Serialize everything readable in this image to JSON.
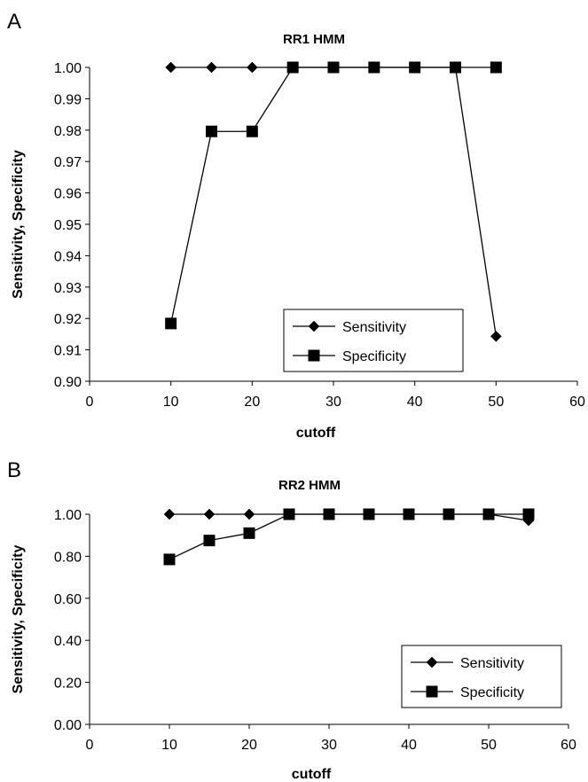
{
  "chart_data": [
    {
      "panel": "A",
      "type": "line",
      "title": "RR1 HMM",
      "xlabel": "cutoff",
      "ylabel": "Sensitivity, Specificity",
      "xlim": [
        0,
        60
      ],
      "ylim": [
        0.9,
        1.0
      ],
      "xticks": [
        "0",
        "10",
        "20",
        "30",
        "40",
        "50",
        "60"
      ],
      "yticks": [
        "0.90",
        "0.91",
        "0.92",
        "0.93",
        "0.94",
        "0.95",
        "0.96",
        "0.97",
        "0.98",
        "0.99",
        "1.00"
      ],
      "grid": false,
      "legend_position": "bottom-right",
      "series": [
        {
          "name": "Sensitivity",
          "marker": "diamond",
          "color": "#000000",
          "x": [
            10,
            15,
            20,
            25,
            30,
            35,
            40,
            45,
            50
          ],
          "y": [
            1.0,
            1.0,
            1.0,
            1.0,
            1.0,
            1.0,
            1.0,
            1.0,
            0.9143
          ]
        },
        {
          "name": "Specificity",
          "marker": "square",
          "color": "#000000",
          "x": [
            10,
            15,
            20,
            25,
            30,
            35,
            40,
            45,
            50
          ],
          "y": [
            0.9184,
            0.9796,
            0.9796,
            1.0,
            1.0,
            1.0,
            1.0,
            1.0,
            1.0
          ]
        }
      ]
    },
    {
      "panel": "B",
      "type": "line",
      "title": "RR2 HMM",
      "xlabel": "cutoff",
      "ylabel": "Sensitivity, Specificity",
      "xlim": [
        0,
        60
      ],
      "ylim": [
        0.0,
        1.0
      ],
      "xticks": [
        "0",
        "10",
        "20",
        "30",
        "40",
        "50",
        "60"
      ],
      "yticks": [
        "0.00",
        "0.20",
        "0.40",
        "0.60",
        "0.80",
        "1.00"
      ],
      "grid": false,
      "legend_position": "bottom-right",
      "series": [
        {
          "name": "Sensitivity",
          "marker": "diamond",
          "color": "#000000",
          "x": [
            10,
            15,
            20,
            25,
            30,
            35,
            40,
            45,
            50,
            55
          ],
          "y": [
            1.0,
            1.0,
            1.0,
            1.0,
            1.0,
            1.0,
            1.0,
            1.0,
            1.0,
            0.97
          ]
        },
        {
          "name": "Specificity",
          "marker": "square",
          "color": "#000000",
          "x": [
            10,
            15,
            20,
            25,
            30,
            35,
            40,
            45,
            50,
            55
          ],
          "y": [
            0.785,
            0.875,
            0.91,
            1.0,
            1.0,
            1.0,
            1.0,
            1.0,
            1.0,
            1.0
          ]
        }
      ]
    }
  ]
}
